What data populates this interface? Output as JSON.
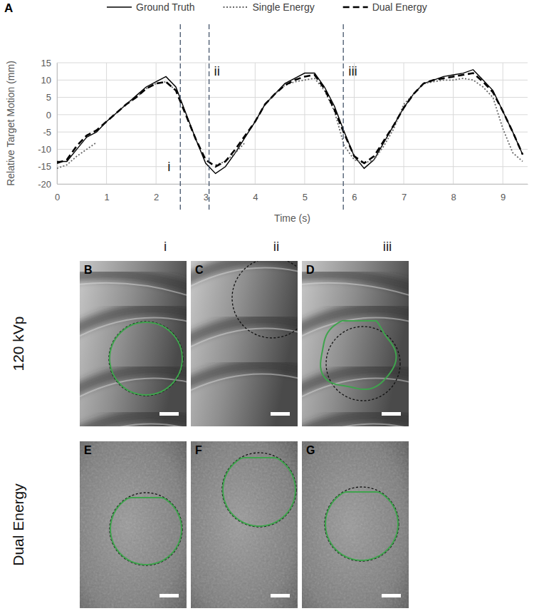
{
  "chart_data": {
    "type": "line",
    "panel_label": "A",
    "xlabel": "Time (s)",
    "ylabel": "Relative Target Motion (mm)",
    "x": [
      0,
      0.2,
      0.4,
      0.6,
      0.8,
      1.0,
      1.2,
      1.4,
      1.6,
      1.8,
      2.0,
      2.2,
      2.4,
      2.6,
      2.8,
      3.0,
      3.2,
      3.4,
      3.6,
      3.8,
      4.0,
      4.2,
      4.4,
      4.6,
      4.8,
      5.0,
      5.2,
      5.4,
      5.6,
      5.8,
      6.0,
      6.2,
      6.4,
      6.6,
      6.8,
      7.0,
      7.2,
      7.4,
      7.6,
      7.8,
      8.0,
      8.2,
      8.4,
      8.6,
      8.8,
      9.0,
      9.2,
      9.4
    ],
    "series": [
      {
        "name": "Ground Truth",
        "color": "#000000",
        "line_style": "solid",
        "values": [
          -13.5,
          -13.5,
          -10,
          -6.5,
          -5,
          -2,
          0.5,
          3,
          5.5,
          8,
          9.5,
          11,
          8,
          0.5,
          -7,
          -14,
          -17,
          -15,
          -11,
          -6.5,
          -2,
          3,
          6,
          9,
          10.5,
          12,
          12,
          8,
          2.5,
          -5,
          -12,
          -15.5,
          -13,
          -8,
          -3,
          2,
          6,
          9,
          10,
          11,
          11.5,
          12,
          13,
          10,
          7,
          1,
          -5,
          -11.5
        ]
      },
      {
        "name": "Single Energy",
        "color": "#666666",
        "line_style": "dotted",
        "values": [
          -15.5,
          -14.5,
          -12,
          -10,
          -8,
          null,
          0.5,
          3,
          5,
          7.5,
          9,
          9.5,
          7,
          null,
          null,
          null,
          -14.5,
          -13.5,
          -11,
          -8,
          null,
          3,
          6,
          8.5,
          9.5,
          10,
          10.5,
          7,
          1,
          -9,
          -13,
          -14,
          -13,
          -9,
          -4,
          3,
          6,
          9,
          9.5,
          10,
          10,
          10.5,
          10,
          8,
          5,
          -4,
          -11,
          -13.5
        ]
      },
      {
        "name": "Dual Energy",
        "color": "#000000",
        "line_style": "dashed",
        "values": [
          -14,
          -13,
          -9,
          -6,
          -4.5,
          -2,
          0.5,
          3,
          5,
          7.5,
          9,
          9.5,
          7,
          0,
          -7,
          -13,
          -15,
          -13.5,
          -10,
          -6,
          -2,
          3,
          6,
          8.5,
          10,
          11,
          11.5,
          7.5,
          1.5,
          -5.5,
          -12,
          -14,
          -12,
          -7.5,
          -3,
          2,
          6,
          9,
          10,
          10.5,
          11,
          11.5,
          12,
          9.5,
          6.5,
          1,
          -5,
          -11.5
        ]
      }
    ],
    "xlim": [
      0,
      9.5
    ],
    "xticks": [
      0,
      1,
      2,
      3,
      4,
      5,
      6,
      7,
      8,
      9
    ],
    "ylim": [
      -20,
      15
    ],
    "yticks": [
      -20,
      -15,
      -10,
      -5,
      0,
      5,
      10,
      15
    ],
    "grid": true,
    "legend": "top",
    "annotations": [
      {
        "x": 2.49,
        "label": "i"
      },
      {
        "x": 3.07,
        "label": "ii"
      },
      {
        "x": 5.78,
        "label": "iii"
      }
    ]
  },
  "panels": {
    "columns": [
      "i",
      "ii",
      "iii"
    ],
    "rows": [
      "120 kVp",
      "Dual Energy"
    ],
    "letters": [
      [
        "B",
        "C",
        "D"
      ],
      [
        "E",
        "F",
        "G"
      ]
    ]
  }
}
